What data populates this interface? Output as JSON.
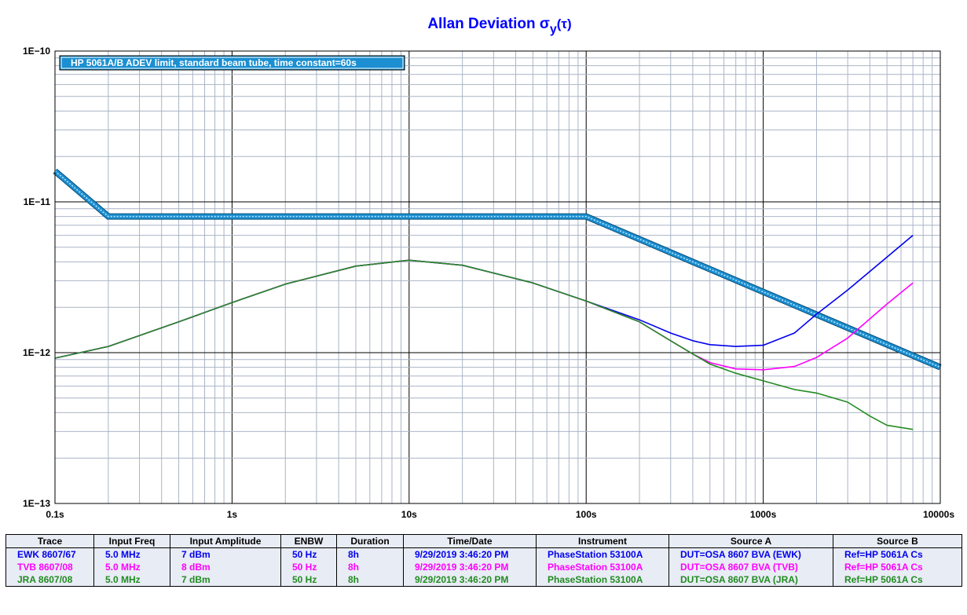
{
  "chart_data": {
    "type": "line",
    "title_main": "Allan Deviation σ",
    "title_sub": "y",
    "title_end": "(τ)",
    "title_color": "#0000ff",
    "x_scale": "log",
    "y_scale": "log",
    "xlim": [
      0.1,
      10000
    ],
    "ylim": [
      1e-13,
      1e-10
    ],
    "grid": true,
    "x_tick_labels": [
      "0.1s",
      "1s",
      "10s",
      "100s",
      "1000s",
      "10000s"
    ],
    "y_tick_labels": [
      "1E−10",
      "1E−11",
      "1E−12",
      "1E−13"
    ],
    "legend_label": "HP 5061A/B ADEV limit, standard beam tube, time constant=60s",
    "legend_color": "#1b8fd1",
    "series": [
      {
        "name": "HP 5061A/B ADEV limit, standard beam tube, time constant=60s",
        "color": "#1b8fd1",
        "x": [
          0.1,
          0.2,
          100,
          10000
        ],
        "y": [
          1.6e-11,
          8e-12,
          8e-12,
          8e-13
        ]
      },
      {
        "name": "EWK 8607/67",
        "color": "#0000ee",
        "x": [
          0.1,
          0.2,
          0.5,
          1,
          2,
          5,
          10,
          20,
          50,
          100,
          200,
          300,
          400,
          500,
          700,
          1000,
          1500,
          2000,
          3000,
          5000,
          7000
        ],
        "y": [
          9.2e-13,
          1.1e-12,
          1.6e-12,
          2.15e-12,
          2.85e-12,
          3.75e-12,
          4.1e-12,
          3.8e-12,
          2.9e-12,
          2.2e-12,
          1.65e-12,
          1.35e-12,
          1.2e-12,
          1.13e-12,
          1.1e-12,
          1.12e-12,
          1.35e-12,
          1.8e-12,
          2.6e-12,
          4.3e-12,
          6e-12
        ]
      },
      {
        "name": "TVB 8607/08",
        "color": "#ff00ff",
        "x": [
          0.1,
          0.2,
          0.5,
          1,
          2,
          5,
          10,
          20,
          50,
          100,
          200,
          300,
          400,
          500,
          700,
          1000,
          1500,
          2000,
          3000,
          5000,
          7000
        ],
        "y": [
          9.2e-13,
          1.1e-12,
          1.6e-12,
          2.15e-12,
          2.85e-12,
          3.75e-12,
          4.1e-12,
          3.8e-12,
          2.9e-12,
          2.2e-12,
          1.6e-12,
          1.2e-12,
          9.8e-13,
          8.6e-13,
          7.8e-13,
          7.7e-13,
          8.1e-13,
          9.3e-13,
          1.25e-12,
          2.1e-12,
          2.9e-12
        ]
      },
      {
        "name": "JRA 8607/08",
        "color": "#228b22",
        "x": [
          0.1,
          0.2,
          0.5,
          1,
          2,
          5,
          10,
          20,
          50,
          100,
          200,
          300,
          400,
          500,
          700,
          1000,
          1500,
          2000,
          3000,
          4000,
          5000,
          7000
        ],
        "y": [
          9.2e-13,
          1.1e-12,
          1.6e-12,
          2.15e-12,
          2.85e-12,
          3.75e-12,
          4.1e-12,
          3.8e-12,
          2.9e-12,
          2.2e-12,
          1.6e-12,
          1.2e-12,
          9.8e-13,
          8.4e-13,
          7.3e-13,
          6.5e-13,
          5.7e-13,
          5.4e-13,
          4.7e-13,
          3.8e-13,
          3.3e-13,
          3.1e-13
        ]
      }
    ]
  },
  "table": {
    "headers": [
      "Trace",
      "Input Freq",
      "Input Amplitude",
      "ENBW",
      "Duration",
      "Time/Date",
      "Instrument",
      "Source A",
      "Source B"
    ],
    "rows": [
      {
        "color": "#0000ee",
        "cells": [
          "EWK 8607/67",
          "5.0 MHz",
          "7 dBm",
          "50 Hz",
          "8h",
          "9/29/2019 3:46:20 PM",
          "PhaseStation 53100A",
          "DUT=OSA 8607 BVA (EWK)",
          "Ref=HP 5061A Cs"
        ]
      },
      {
        "color": "#ff00ff",
        "cells": [
          "TVB 8607/08",
          "5.0 MHz",
          "8 dBm",
          "50 Hz",
          "8h",
          "9/29/2019 3:46:20 PM",
          "PhaseStation 53100A",
          "DUT=OSA 8607 BVA (TVB)",
          "Ref=HP 5061A Cs"
        ]
      },
      {
        "color": "#228b22",
        "cells": [
          "JRA 8607/08",
          "5.0 MHz",
          "7 dBm",
          "50 Hz",
          "8h",
          "9/29/2019 3:46:20 PM",
          "PhaseStation 53100A",
          "DUT=OSA 8607 BVA (JRA)",
          "Ref=HP 5061A Cs"
        ]
      }
    ]
  }
}
